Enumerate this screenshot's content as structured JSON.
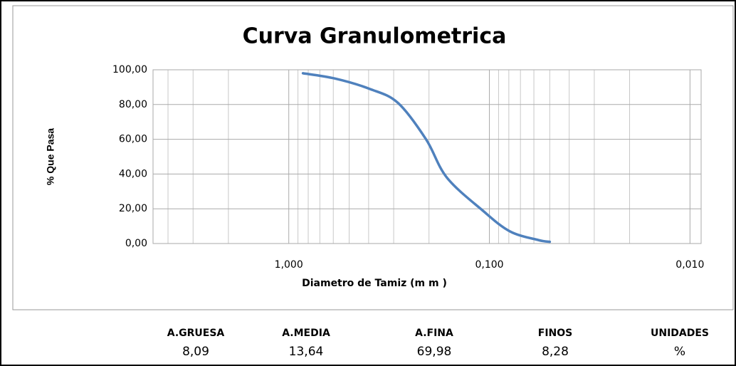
{
  "chart_data": {
    "type": "line",
    "title": "Curva Granulometrica",
    "x_label": "Diametro de Tamiz (m m )",
    "y_label": "% Que Pasa",
    "xscale": "log",
    "x_reversed": true,
    "xlim": [
      4.75,
      0.0088
    ],
    "ylim": [
      0,
      100
    ],
    "xticks": [
      {
        "value": 1,
        "label": "1,000"
      },
      {
        "value": 0.1,
        "label": "0,100"
      },
      {
        "value": 0.01,
        "label": "0,010"
      }
    ],
    "xminorticks": [
      4,
      3,
      2,
      0.9,
      0.8,
      0.7,
      0.6,
      0.5,
      0.4,
      0.3,
      0.2,
      0.09,
      0.08,
      0.07,
      0.06,
      0.05,
      0.04,
      0.03,
      0.02
    ],
    "yticks": [
      {
        "value": 0,
        "label": "0,00"
      },
      {
        "value": 20,
        "label": "20,00"
      },
      {
        "value": 40,
        "label": "40,00"
      },
      {
        "value": 60,
        "label": "60,00"
      },
      {
        "value": 80,
        "label": "80,00"
      },
      {
        "value": 100,
        "label": "100,00"
      }
    ],
    "grid": true,
    "series": [
      {
        "name": "% Que Pasa",
        "color": "#4f81bd",
        "x": [
          0.85,
          0.59,
          0.395,
          0.286,
          0.207,
          0.163,
          0.108,
          0.079,
          0.057,
          0.05
        ],
        "values": [
          98,
          95,
          89,
          81,
          60,
          38,
          19,
          7,
          2,
          1
        ]
      }
    ]
  },
  "summary": {
    "headers": [
      "A.GRUESA",
      "A.MEDIA",
      "A.FINA",
      "FINOS",
      "UNIDADES"
    ],
    "values": [
      "8,09",
      "13,64",
      "69,98",
      "8,28",
      "%"
    ]
  }
}
